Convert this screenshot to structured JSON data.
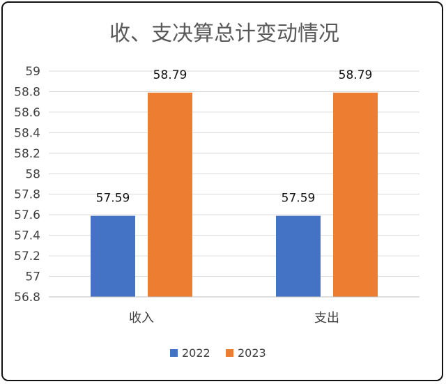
{
  "chart_data": {
    "type": "bar",
    "title": "收、支决算总计变动情况",
    "categories": [
      "收入",
      "支出"
    ],
    "series": [
      {
        "name": "2022",
        "values": [
          57.59,
          57.59
        ],
        "color": "#4472C4"
      },
      {
        "name": "2023",
        "values": [
          58.79,
          58.79
        ],
        "color": "#ED7D31"
      }
    ],
    "ylim": [
      56.8,
      59
    ],
    "yticks": [
      "56.8",
      "57",
      "57.2",
      "57.4",
      "57.6",
      "57.8",
      "58",
      "58.2",
      "58.4",
      "58.6",
      "58.8",
      "59"
    ],
    "data_labels": [
      [
        "57.59",
        "57.59"
      ],
      [
        "58.79",
        "58.79"
      ]
    ],
    "grid": true,
    "legend": "bottom"
  }
}
